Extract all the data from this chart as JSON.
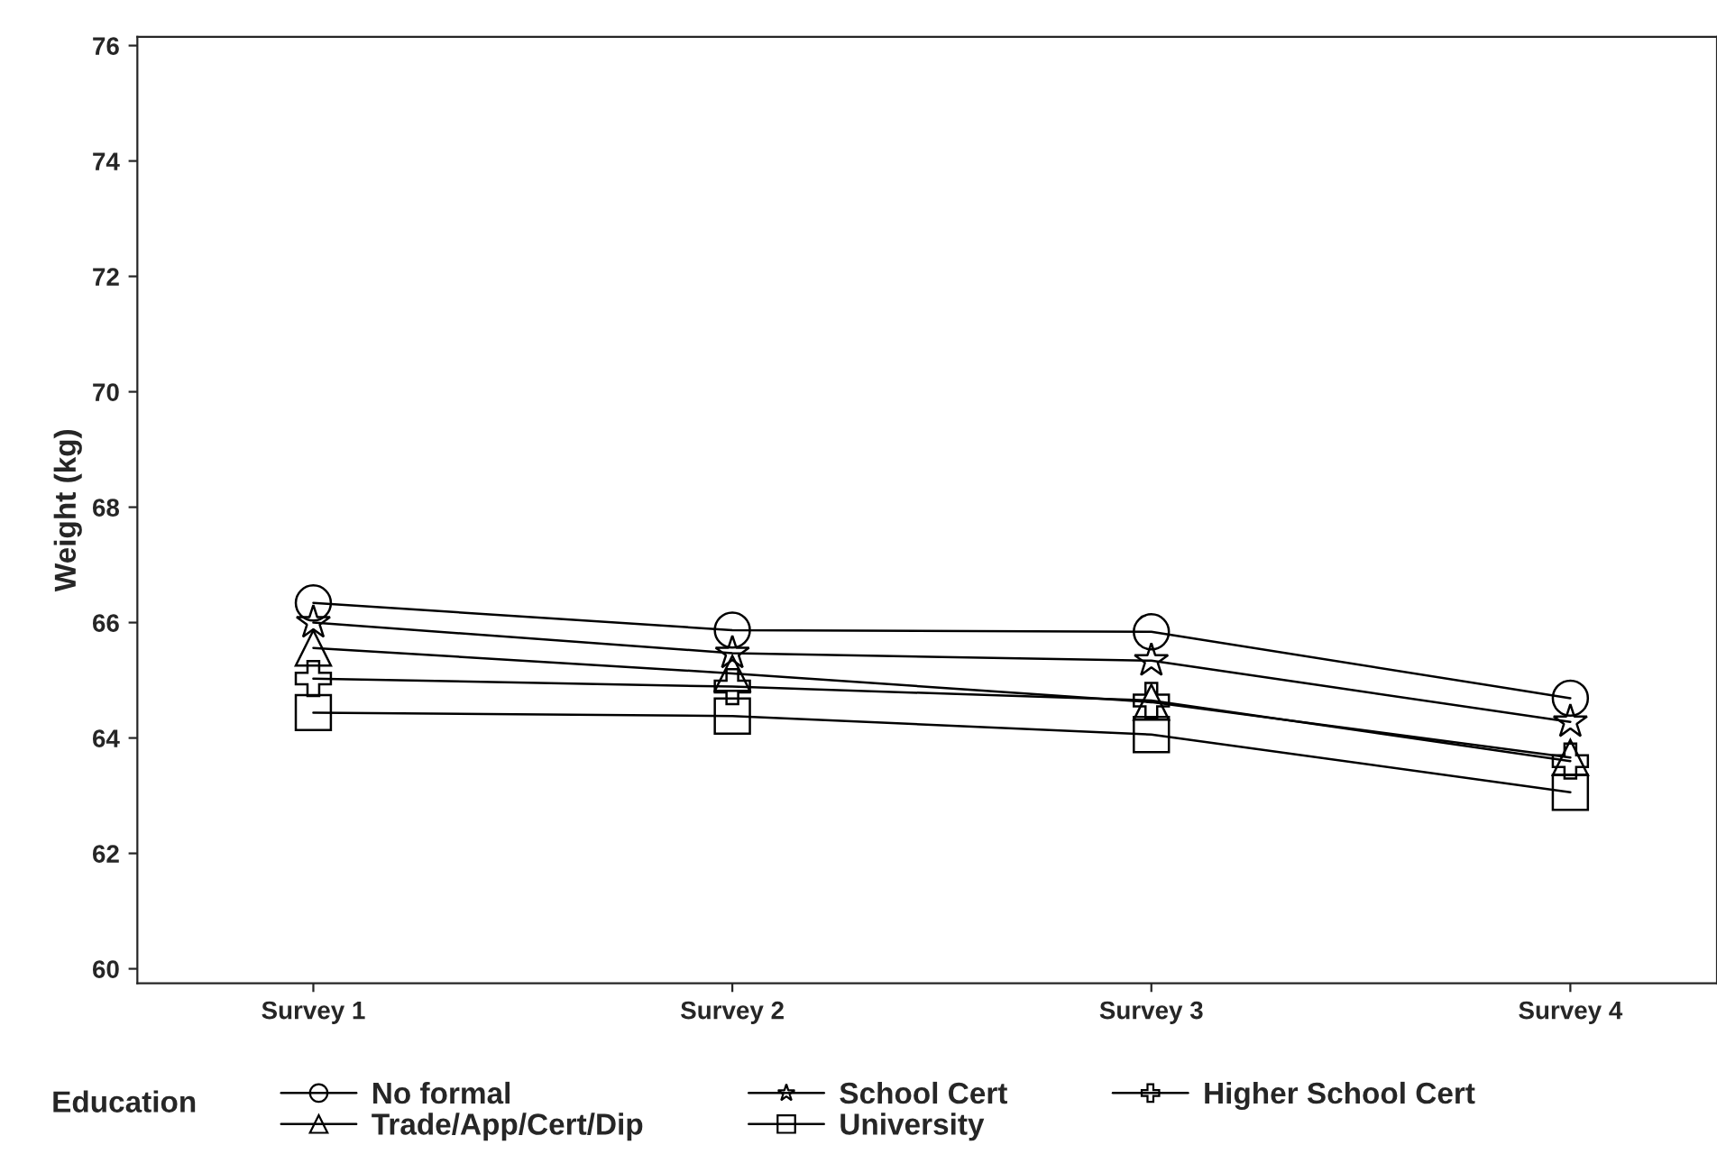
{
  "chart_data": {
    "type": "line",
    "ylabel": "Weight (kg)",
    "legend_title": "Education",
    "legend": "bottom",
    "grid": false,
    "categories": [
      "Survey 1",
      "Survey 2",
      "Survey 3",
      "Survey 4"
    ],
    "ylim": [
      59.75,
      76.15
    ],
    "yticks": [
      60,
      62,
      64,
      66,
      68,
      70,
      72,
      74,
      76
    ],
    "series": [
      {
        "name": "No formal",
        "color": "#000000",
        "marker": "circle",
        "values": [
          66.34,
          65.87,
          65.84,
          64.69
        ]
      },
      {
        "name": "School Cert",
        "color": "#000000",
        "marker": "star",
        "values": [
          66.0,
          65.47,
          65.34,
          64.28
        ]
      },
      {
        "name": "Higher School Cert",
        "color": "#000000",
        "marker": "cross",
        "values": [
          65.03,
          64.89,
          64.65,
          63.6
        ]
      },
      {
        "name": "Trade/App/Cert/Dip",
        "color": "#000000",
        "marker": "triangle",
        "values": [
          65.56,
          65.12,
          64.62,
          63.66
        ]
      },
      {
        "name": "University",
        "color": "#000000",
        "marker": "square",
        "values": [
          64.44,
          64.38,
          64.06,
          63.06
        ]
      }
    ]
  }
}
